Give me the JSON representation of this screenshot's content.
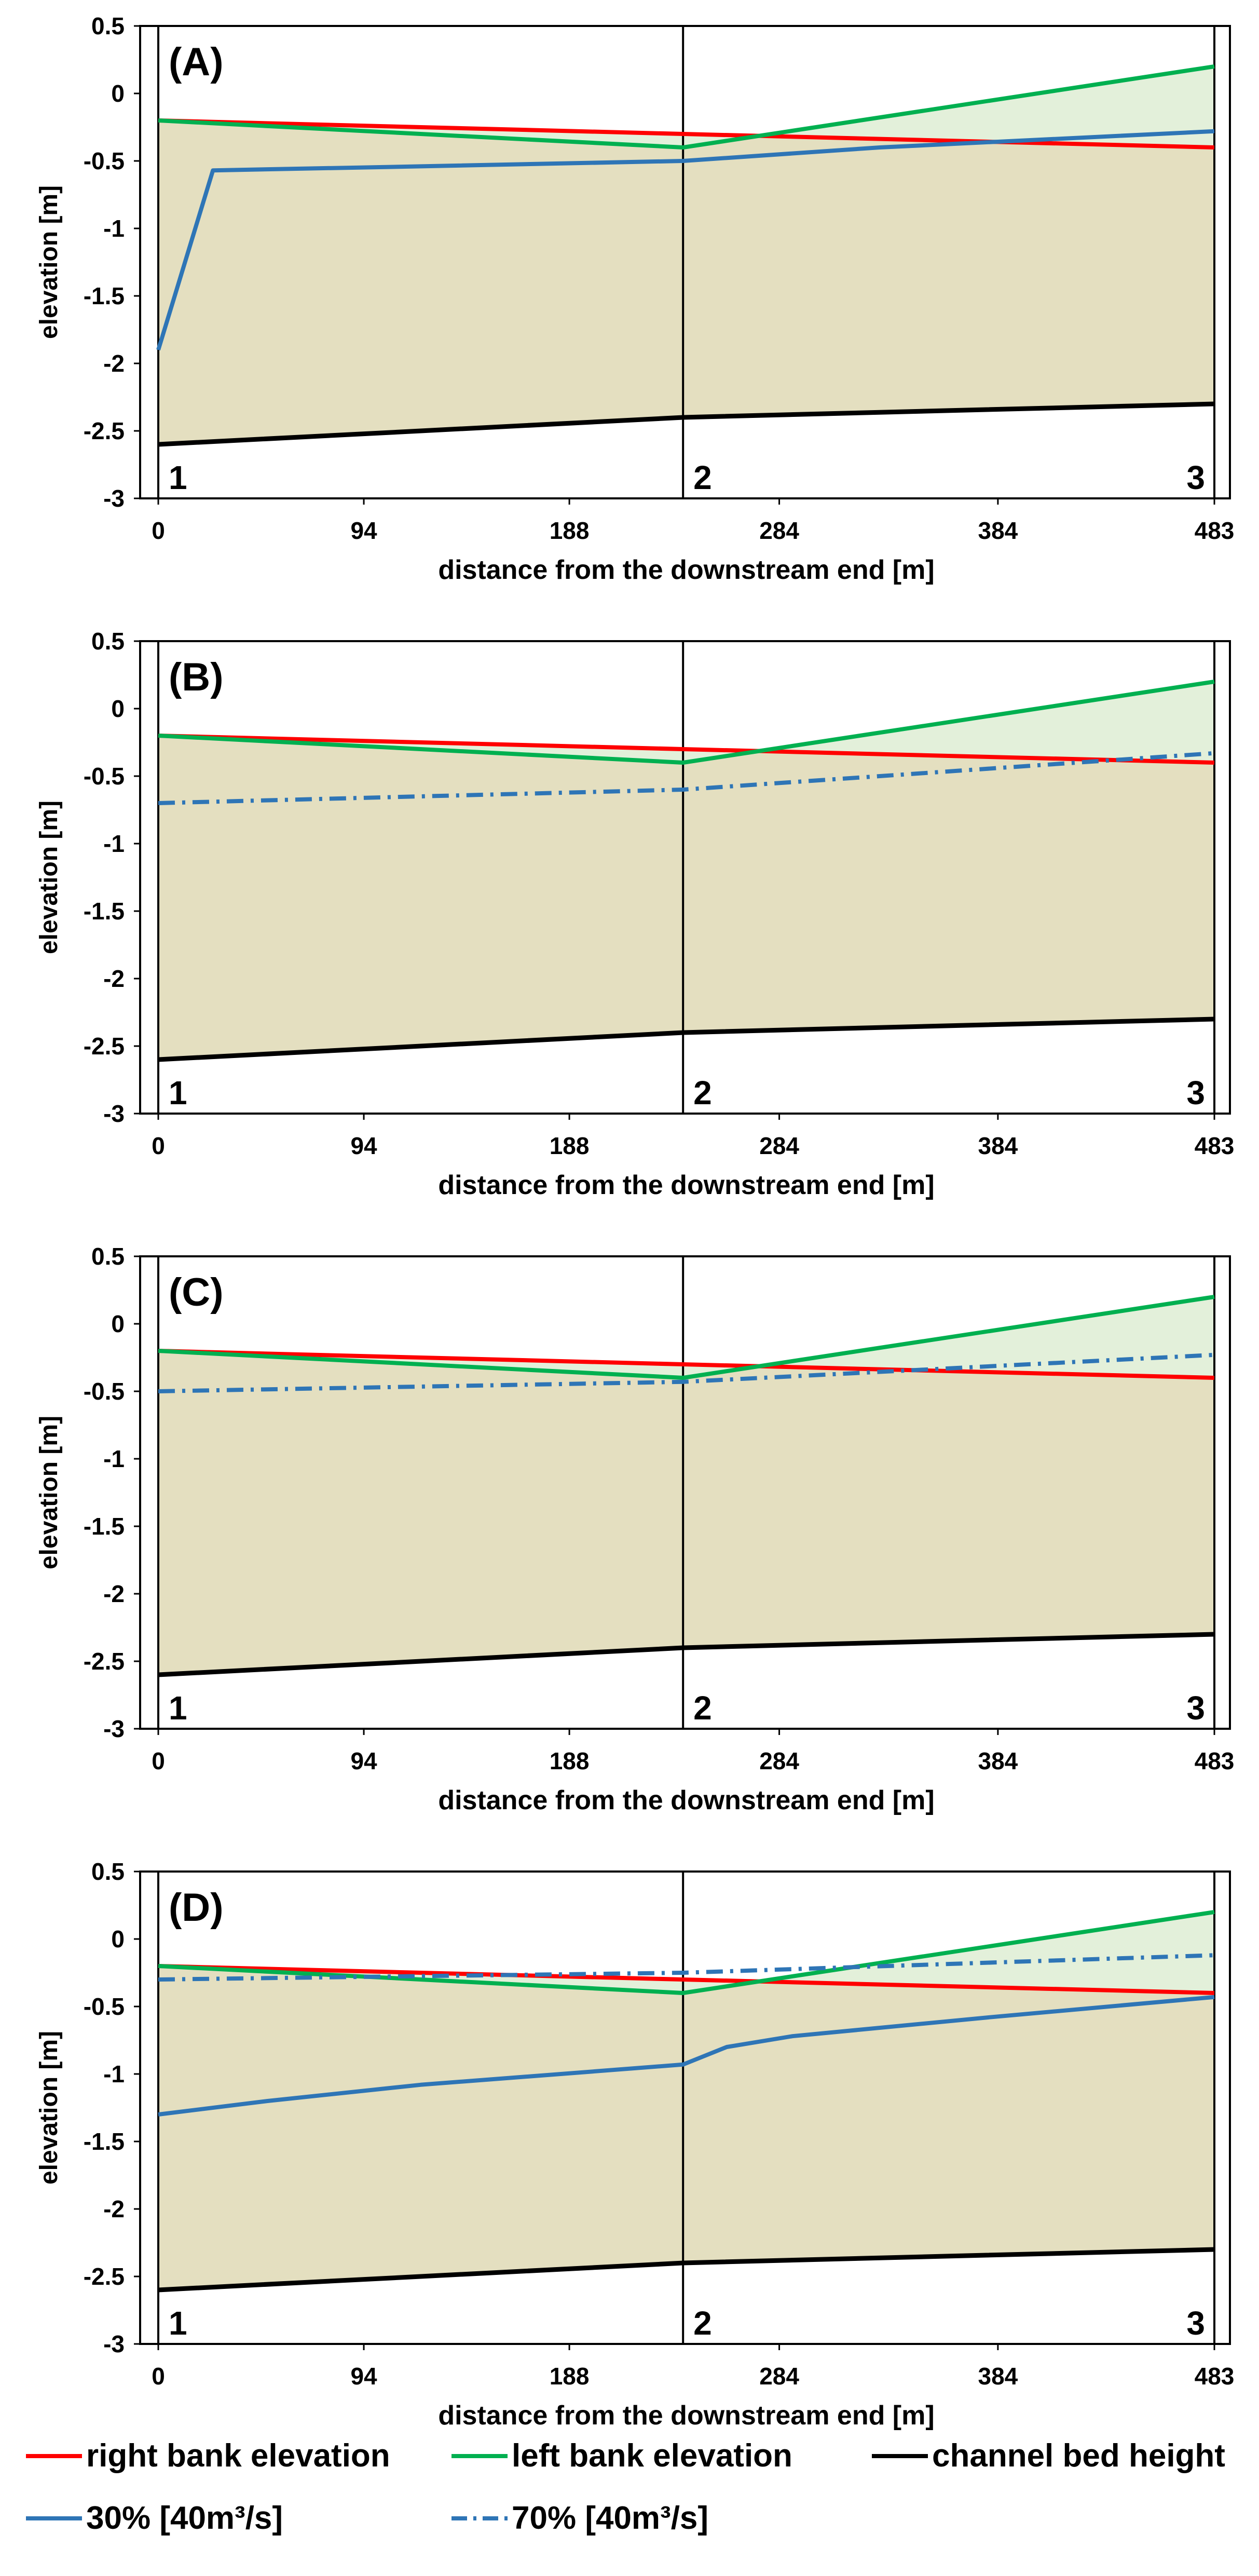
{
  "chart_data": [
    {
      "type": "line",
      "panel_label": "(A)",
      "xlabel": "distance from the downstream end [m]",
      "ylabel": "elevation [m]",
      "ylim": [
        -3,
        0.5
      ],
      "xlim": [
        0,
        483
      ],
      "yticks": [
        "0.5",
        "0",
        "-0.5",
        "-1",
        "-1.5",
        "-2",
        "-2.5",
        "-3"
      ],
      "xticks": [
        "0",
        "94",
        "188",
        "284",
        "384",
        "483"
      ],
      "sections": [
        {
          "label": "1",
          "x": 0
        },
        {
          "label": "2",
          "x": 240
        },
        {
          "label": "3",
          "x": 483
        }
      ],
      "series": [
        {
          "name": "right bank elevation",
          "color": "#ff0000",
          "style": "solid",
          "x": [
            0,
            240,
            483
          ],
          "y": [
            -0.2,
            -0.3,
            -0.4
          ]
        },
        {
          "name": "left bank elevation",
          "color": "#00b050",
          "style": "solid",
          "x": [
            0,
            240,
            483
          ],
          "y": [
            -0.2,
            -0.4,
            0.2
          ]
        },
        {
          "name": "channel bed height",
          "color": "#000000",
          "style": "solid",
          "x": [
            0,
            120,
            240,
            360,
            483
          ],
          "y": [
            -2.6,
            -2.5,
            -2.4,
            -2.35,
            -2.3
          ]
        },
        {
          "name": "30% [40m³/s]",
          "color": "#2e75b6",
          "style": "solid",
          "x": [
            0,
            25,
            120,
            240,
            330,
            483
          ],
          "y": [
            -1.9,
            -0.57,
            -0.54,
            -0.5,
            -0.4,
            -0.28
          ]
        }
      ]
    },
    {
      "type": "line",
      "panel_label": "(B)",
      "xlabel": "distance from the downstream end [m]",
      "ylabel": "elevation [m]",
      "ylim": [
        -3,
        0.5
      ],
      "xlim": [
        0,
        483
      ],
      "yticks": [
        "0.5",
        "0",
        "-0.5",
        "-1",
        "-1.5",
        "-2",
        "-2.5",
        "-3"
      ],
      "xticks": [
        "0",
        "94",
        "188",
        "284",
        "384",
        "483"
      ],
      "sections": [
        {
          "label": "1",
          "x": 0
        },
        {
          "label": "2",
          "x": 240
        },
        {
          "label": "3",
          "x": 483
        }
      ],
      "series": [
        {
          "name": "right bank elevation",
          "color": "#ff0000",
          "style": "solid",
          "x": [
            0,
            240,
            483
          ],
          "y": [
            -0.2,
            -0.3,
            -0.4
          ]
        },
        {
          "name": "left bank elevation",
          "color": "#00b050",
          "style": "solid",
          "x": [
            0,
            240,
            483
          ],
          "y": [
            -0.2,
            -0.4,
            0.2
          ]
        },
        {
          "name": "channel bed height",
          "color": "#000000",
          "style": "solid",
          "x": [
            0,
            120,
            240,
            360,
            483
          ],
          "y": [
            -2.6,
            -2.5,
            -2.4,
            -2.35,
            -2.3
          ]
        },
        {
          "name": "70% [40m³/s]",
          "color": "#2e75b6",
          "style": "dashdot",
          "x": [
            0,
            240,
            483
          ],
          "y": [
            -0.7,
            -0.6,
            -0.33
          ]
        }
      ]
    },
    {
      "type": "line",
      "panel_label": "(C)",
      "xlabel": "distance from the downstream end [m]",
      "ylabel": "elevation [m]",
      "ylim": [
        -3,
        0.5
      ],
      "xlim": [
        0,
        483
      ],
      "yticks": [
        "0.5",
        "0",
        "-0.5",
        "-1",
        "-1.5",
        "-2",
        "-2.5",
        "-3"
      ],
      "xticks": [
        "0",
        "94",
        "188",
        "284",
        "384",
        "483"
      ],
      "sections": [
        {
          "label": "1",
          "x": 0
        },
        {
          "label": "2",
          "x": 240
        },
        {
          "label": "3",
          "x": 483
        }
      ],
      "series": [
        {
          "name": "right bank elevation",
          "color": "#ff0000",
          "style": "solid",
          "x": [
            0,
            240,
            483
          ],
          "y": [
            -0.2,
            -0.3,
            -0.4
          ]
        },
        {
          "name": "left bank elevation",
          "color": "#00b050",
          "style": "solid",
          "x": [
            0,
            240,
            483
          ],
          "y": [
            -0.2,
            -0.4,
            0.2
          ]
        },
        {
          "name": "channel bed height",
          "color": "#000000",
          "style": "solid",
          "x": [
            0,
            120,
            240,
            360,
            483
          ],
          "y": [
            -2.6,
            -2.5,
            -2.4,
            -2.35,
            -2.3
          ]
        },
        {
          "name": "70% [40m³/s]",
          "color": "#2e75b6",
          "style": "dashdot",
          "x": [
            0,
            240,
            483
          ],
          "y": [
            -0.5,
            -0.43,
            -0.23
          ]
        }
      ]
    },
    {
      "type": "line",
      "panel_label": "(D)",
      "xlabel": "distance from the downstream end [m]",
      "ylabel": "elevation [m]",
      "ylim": [
        -3,
        0.5
      ],
      "xlim": [
        0,
        483
      ],
      "yticks": [
        "0.5",
        "0",
        "-0.5",
        "-1",
        "-1.5",
        "-2",
        "-2.5",
        "-3"
      ],
      "xticks": [
        "0",
        "94",
        "188",
        "284",
        "384",
        "483"
      ],
      "sections": [
        {
          "label": "1",
          "x": 0
        },
        {
          "label": "2",
          "x": 240
        },
        {
          "label": "3",
          "x": 483
        }
      ],
      "series": [
        {
          "name": "right bank elevation",
          "color": "#ff0000",
          "style": "solid",
          "x": [
            0,
            240,
            483
          ],
          "y": [
            -0.2,
            -0.3,
            -0.4
          ]
        },
        {
          "name": "left bank elevation",
          "color": "#00b050",
          "style": "solid",
          "x": [
            0,
            240,
            483
          ],
          "y": [
            -0.2,
            -0.4,
            0.2
          ]
        },
        {
          "name": "channel bed height",
          "color": "#000000",
          "style": "solid",
          "x": [
            0,
            120,
            240,
            360,
            483
          ],
          "y": [
            -2.6,
            -2.5,
            -2.4,
            -2.35,
            -2.3
          ]
        },
        {
          "name": "30% [40m³/s]",
          "color": "#2e75b6",
          "style": "solid",
          "x": [
            0,
            50,
            120,
            240,
            260,
            290,
            380,
            483
          ],
          "y": [
            -1.3,
            -1.2,
            -1.08,
            -0.93,
            -0.8,
            -0.72,
            -0.58,
            -0.43
          ]
        },
        {
          "name": "70% [40m³/s]",
          "color": "#2e75b6",
          "style": "dashdot",
          "x": [
            0,
            240,
            483
          ],
          "y": [
            -0.3,
            -0.25,
            -0.12
          ]
        }
      ]
    }
  ],
  "legend": [
    {
      "name": "right bank elevation",
      "color": "#ff0000",
      "style": "solid"
    },
    {
      "name": "left bank elevation",
      "color": "#00b050",
      "style": "solid"
    },
    {
      "name": "channel bed height",
      "color": "#000000",
      "style": "solid"
    },
    {
      "name": "30% [40m³/s]",
      "color": "#2e75b6",
      "style": "solid"
    },
    {
      "name": "70% [40m³/s]",
      "color": "#2e75b6",
      "style": "dashdot"
    }
  ],
  "colors": {
    "fill_tan": "#e4dfc0",
    "fill_green": "#e3f0da",
    "frame": "#000000"
  }
}
